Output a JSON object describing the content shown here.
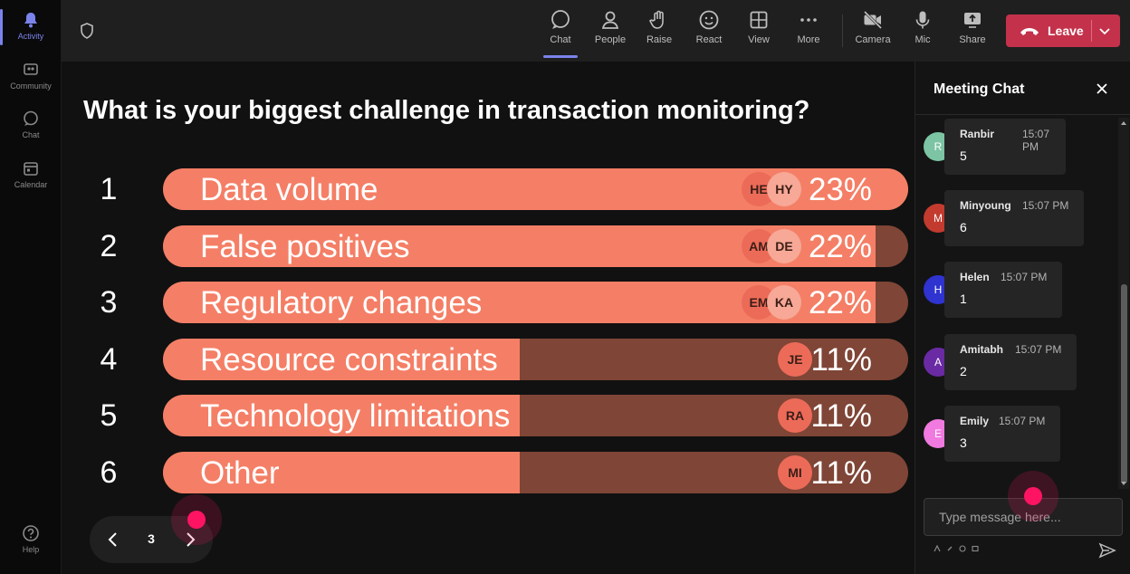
{
  "rail": {
    "items": [
      {
        "label": "Activity",
        "icon": "bell-icon",
        "active": true
      },
      {
        "label": "Community",
        "icon": "community-icon"
      },
      {
        "label": "Chat",
        "icon": "chat-icon"
      },
      {
        "label": "Calendar",
        "icon": "calendar-icon"
      },
      {
        "label": "Help",
        "icon": "help-icon"
      }
    ]
  },
  "toolbar": {
    "chat": "Chat",
    "people": "People",
    "raise": "Raise",
    "react": "React",
    "view": "View",
    "more": "More",
    "camera": "Camera",
    "mic": "Mic",
    "share": "Share",
    "leave": "Leave"
  },
  "poll": {
    "question": "What is your biggest challenge in transaction monitoring?",
    "options": [
      {
        "num": "1",
        "label": "Data volume",
        "percent": "23%",
        "value": 23,
        "avatars": [
          "HE",
          "HY"
        ]
      },
      {
        "num": "2",
        "label": "False positives",
        "percent": "22%",
        "value": 22,
        "avatars": [
          "AM",
          "DE"
        ]
      },
      {
        "num": "3",
        "label": "Regulatory changes",
        "percent": "22%",
        "value": 22,
        "avatars": [
          "EM",
          "KA"
        ]
      },
      {
        "num": "4",
        "label": "Resource constraints",
        "percent": "11%",
        "value": 11,
        "avatars": [
          "JE"
        ]
      },
      {
        "num": "5",
        "label": "Technology limitations",
        "percent": "11%",
        "value": 11,
        "avatars": [
          "RA"
        ]
      },
      {
        "num": "6",
        "label": "Other",
        "percent": "11%",
        "value": 11,
        "avatars": [
          "MI"
        ]
      }
    ],
    "page": "3"
  },
  "chat": {
    "title": "Meeting Chat",
    "messages": [
      {
        "initial": "R",
        "name": "Ranbir",
        "time": "15:07 PM",
        "text": "5",
        "color": "#7cc4a4"
      },
      {
        "initial": "M",
        "name": "Minyoung",
        "time": "15:07 PM",
        "text": "6",
        "color": "#c23b2e"
      },
      {
        "initial": "H",
        "name": "Helen",
        "time": "15:07 PM",
        "text": "1",
        "color": "#2f33d0"
      },
      {
        "initial": "A",
        "name": "Amitabh",
        "time": "15:07 PM",
        "text": "2",
        "color": "#6a2aa3"
      },
      {
        "initial": "E",
        "name": "Emily",
        "time": "15:07 PM",
        "text": "3",
        "color": "#f07adf"
      }
    ],
    "placeholder": "Type message here..."
  },
  "colors": {
    "bar_fill": "#f47f66",
    "bar_track": "#7f4536",
    "leave": "#c4314b",
    "accent": "#7b83eb",
    "cursor": "#ff1464"
  }
}
